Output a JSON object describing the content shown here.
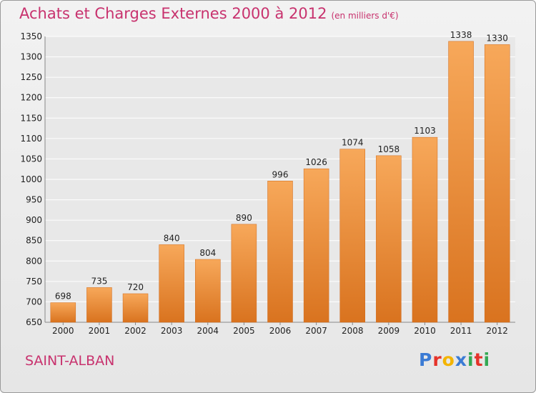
{
  "header": {
    "title": "Achats et Charges Externes 2000 à 2012",
    "unit": "(en milliers d'€)"
  },
  "footer": {
    "city": "SAINT-ALBAN",
    "brand_letters": [
      "P",
      "r",
      "o",
      "x",
      "i",
      "t",
      "i"
    ]
  },
  "colors": {
    "title": "#c8326e",
    "bar_light": "#f7a85a",
    "bar_dark": "#d9731f",
    "brand": [
      "#3b7bd4",
      "#e5332a",
      "#f4b400",
      "#3b7bd4",
      "#34a853",
      "#e5332a",
      "#34a853"
    ]
  },
  "chart_data": {
    "type": "bar",
    "title": "Achats et Charges Externes 2000 à 2012",
    "subtitle": "(en milliers d'€)",
    "xlabel": "",
    "ylabel": "",
    "categories": [
      "2000",
      "2001",
      "2002",
      "2003",
      "2004",
      "2005",
      "2006",
      "2007",
      "2008",
      "2009",
      "2010",
      "2011",
      "2012"
    ],
    "values": [
      698,
      735,
      720,
      840,
      804,
      890,
      996,
      1026,
      1074,
      1058,
      1103,
      1338,
      1330
    ],
    "ylim": [
      650,
      1350
    ],
    "yticks": [
      650,
      700,
      750,
      800,
      850,
      900,
      950,
      1000,
      1050,
      1100,
      1150,
      1200,
      1250,
      1300,
      1350
    ],
    "grid": true,
    "legend": "none"
  }
}
